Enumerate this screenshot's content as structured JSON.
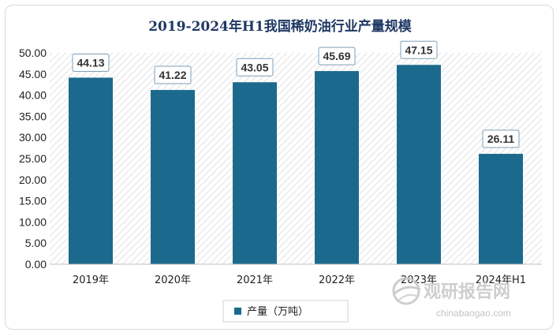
{
  "chart_data": {
    "type": "bar",
    "title": "2019-2024年H1我国稀奶油行业产量规模",
    "categories": [
      "2019年",
      "2020年",
      "2021年",
      "2022年",
      "2023年",
      "2024年H1"
    ],
    "series": [
      {
        "name": "产量（万吨）",
        "values": [
          44.13,
          41.22,
          43.05,
          45.69,
          47.15,
          26.11
        ]
      }
    ],
    "data_labels": [
      "44.13",
      "41.22",
      "43.05",
      "45.69",
      "47.15",
      "26.11"
    ],
    "ylim": [
      0,
      50
    ],
    "yticks": [
      "0.00",
      "5.00",
      "10.00",
      "15.00",
      "20.00",
      "25.00",
      "30.00",
      "35.00",
      "40.00",
      "45.00",
      "50.00"
    ],
    "xlabel": "",
    "ylabel": "",
    "bar_color": "#1b6a8e",
    "legend_position": "bottom",
    "grid": false
  },
  "watermark": {
    "name": "观研报告网",
    "url": "chinabaogao.com",
    "icon": "globe-logo-icon"
  }
}
